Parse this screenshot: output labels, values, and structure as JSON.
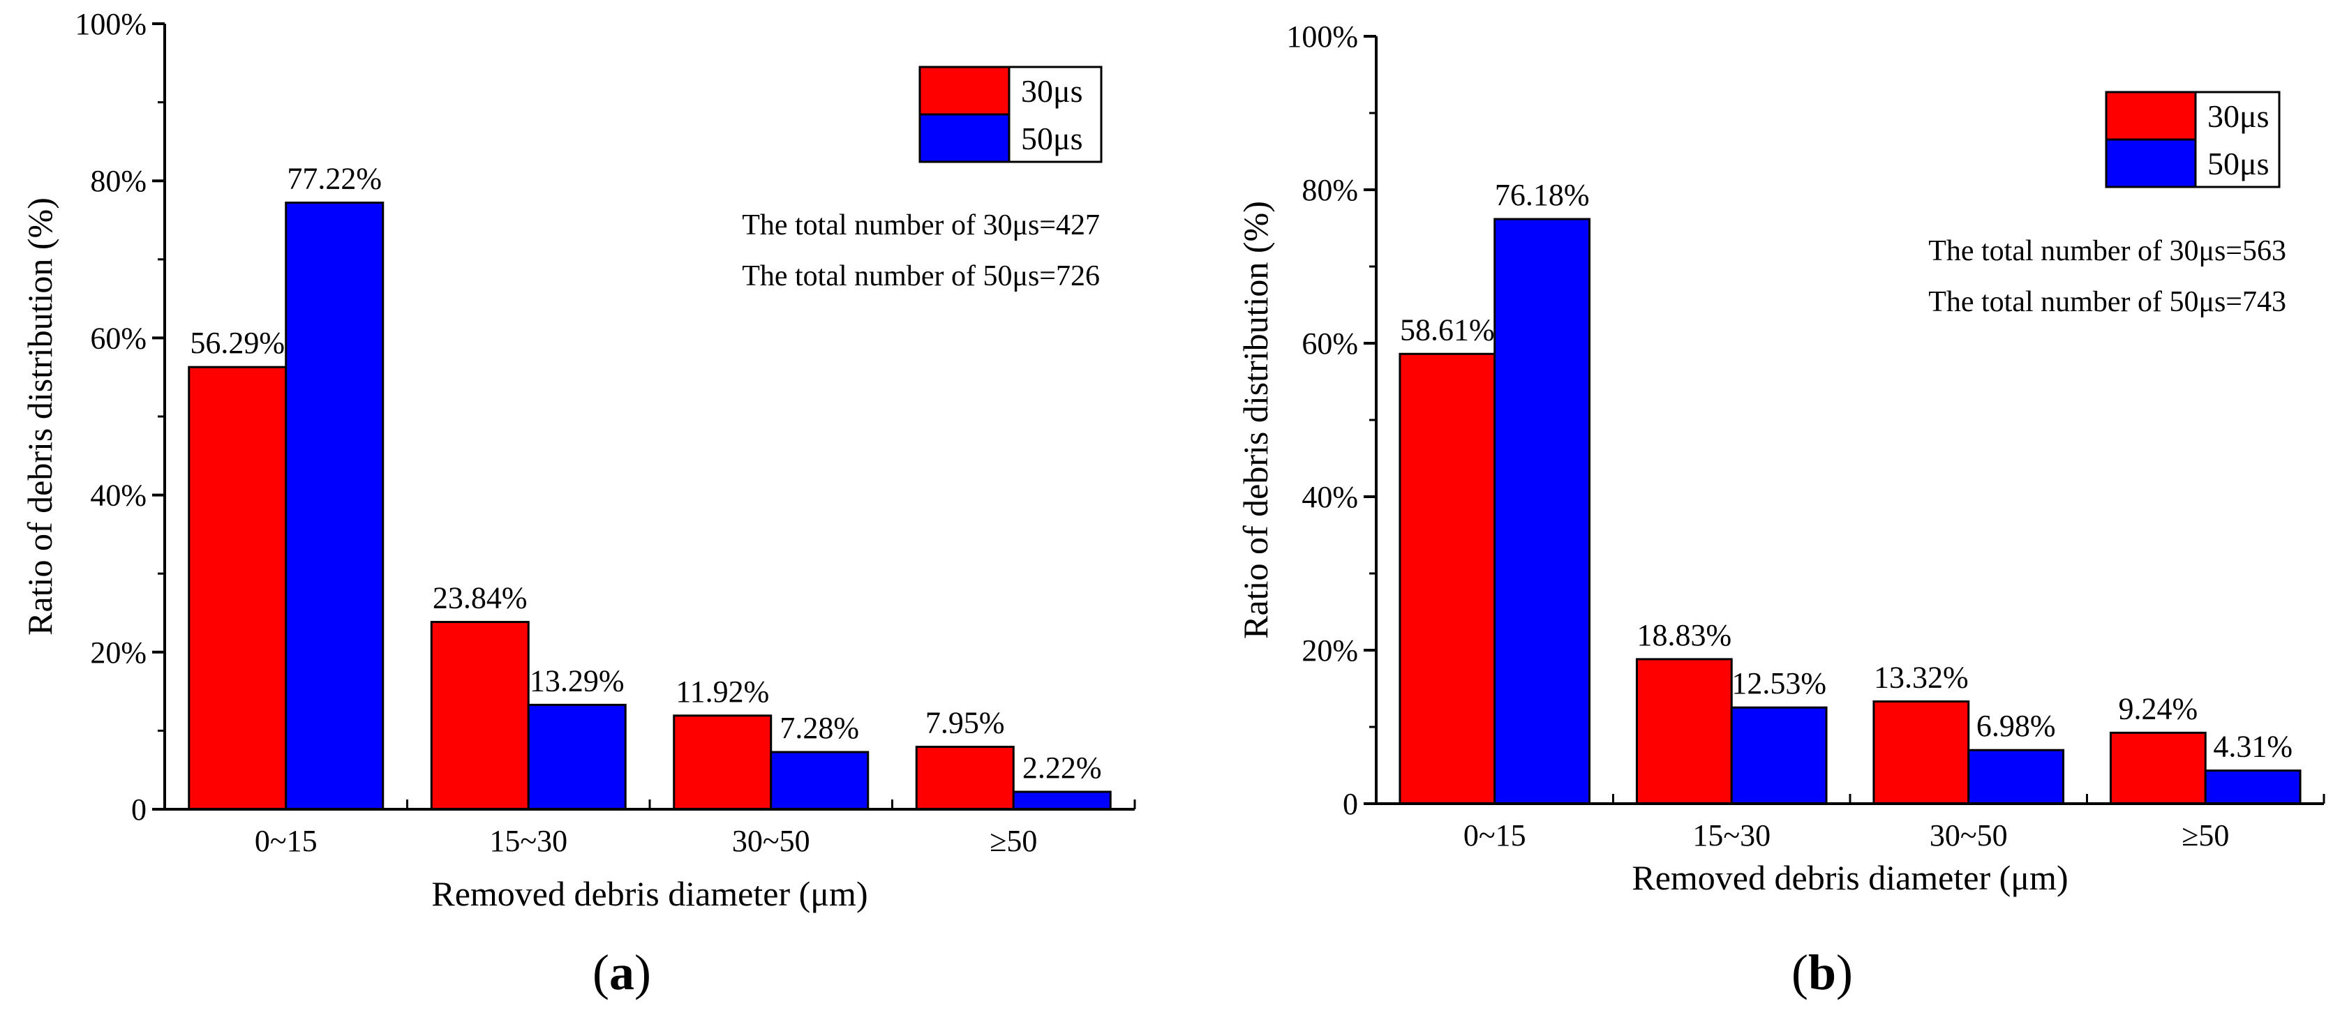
{
  "figure": {
    "panels": [
      {
        "label": "(a)",
        "letter": "a"
      },
      {
        "label": "(b)",
        "letter": "b"
      }
    ]
  },
  "chart_data": [
    {
      "type": "bar",
      "panel": "(a)",
      "categories": [
        "0~15",
        "15~30",
        "30~50",
        "≥50"
      ],
      "series": [
        {
          "name": "30μs",
          "color": "#ff0000",
          "values": [
            56.29,
            23.84,
            11.92,
            7.95
          ],
          "labels": [
            "56.29%",
            "23.84%",
            "11.92%",
            "7.95%"
          ]
        },
        {
          "name": "50μs",
          "color": "#0000ff",
          "values": [
            77.22,
            13.29,
            7.28,
            2.22
          ],
          "labels": [
            "77.22%",
            "13.29%",
            "7.28%",
            "2.22%"
          ]
        }
      ],
      "xlabel": "Removed debris diameter (μm)",
      "ylabel": "Ratio of debris distribution (%)",
      "ylim": [
        0,
        100
      ],
      "yticks": [
        0,
        20,
        40,
        60,
        80,
        100
      ],
      "ytick_labels": [
        "0",
        "20%",
        "40%",
        "60%",
        "80%",
        "100%"
      ],
      "annotations": [
        "The total number of 30μs=427",
        "The total number of 50μs=726"
      ],
      "legend_position": "top-right",
      "grid": false
    },
    {
      "type": "bar",
      "panel": "(b)",
      "categories": [
        "0~15",
        "15~30",
        "30~50",
        "≥50"
      ],
      "series": [
        {
          "name": "30μs",
          "color": "#ff0000",
          "values": [
            58.61,
            18.83,
            13.32,
            9.24
          ],
          "labels": [
            "58.61%",
            "18.83%",
            "13.32%",
            "9.24%"
          ]
        },
        {
          "name": "50μs",
          "color": "#0000ff",
          "values": [
            76.18,
            12.53,
            6.98,
            4.31
          ],
          "labels": [
            "76.18%",
            "12.53%",
            "6.98%",
            "4.31%"
          ]
        }
      ],
      "xlabel": "Removed debris diameter (μm)",
      "ylabel": "Ratio of debris distribution (%)",
      "ylim": [
        0,
        100
      ],
      "yticks": [
        0,
        20,
        40,
        60,
        80,
        100
      ],
      "ytick_labels": [
        "0",
        "20%",
        "40%",
        "60%",
        "80%",
        "100%"
      ],
      "annotations": [
        "The total number of 30μs=563",
        "The total number of 50μs=743"
      ],
      "legend_position": "top-right",
      "grid": false
    }
  ]
}
